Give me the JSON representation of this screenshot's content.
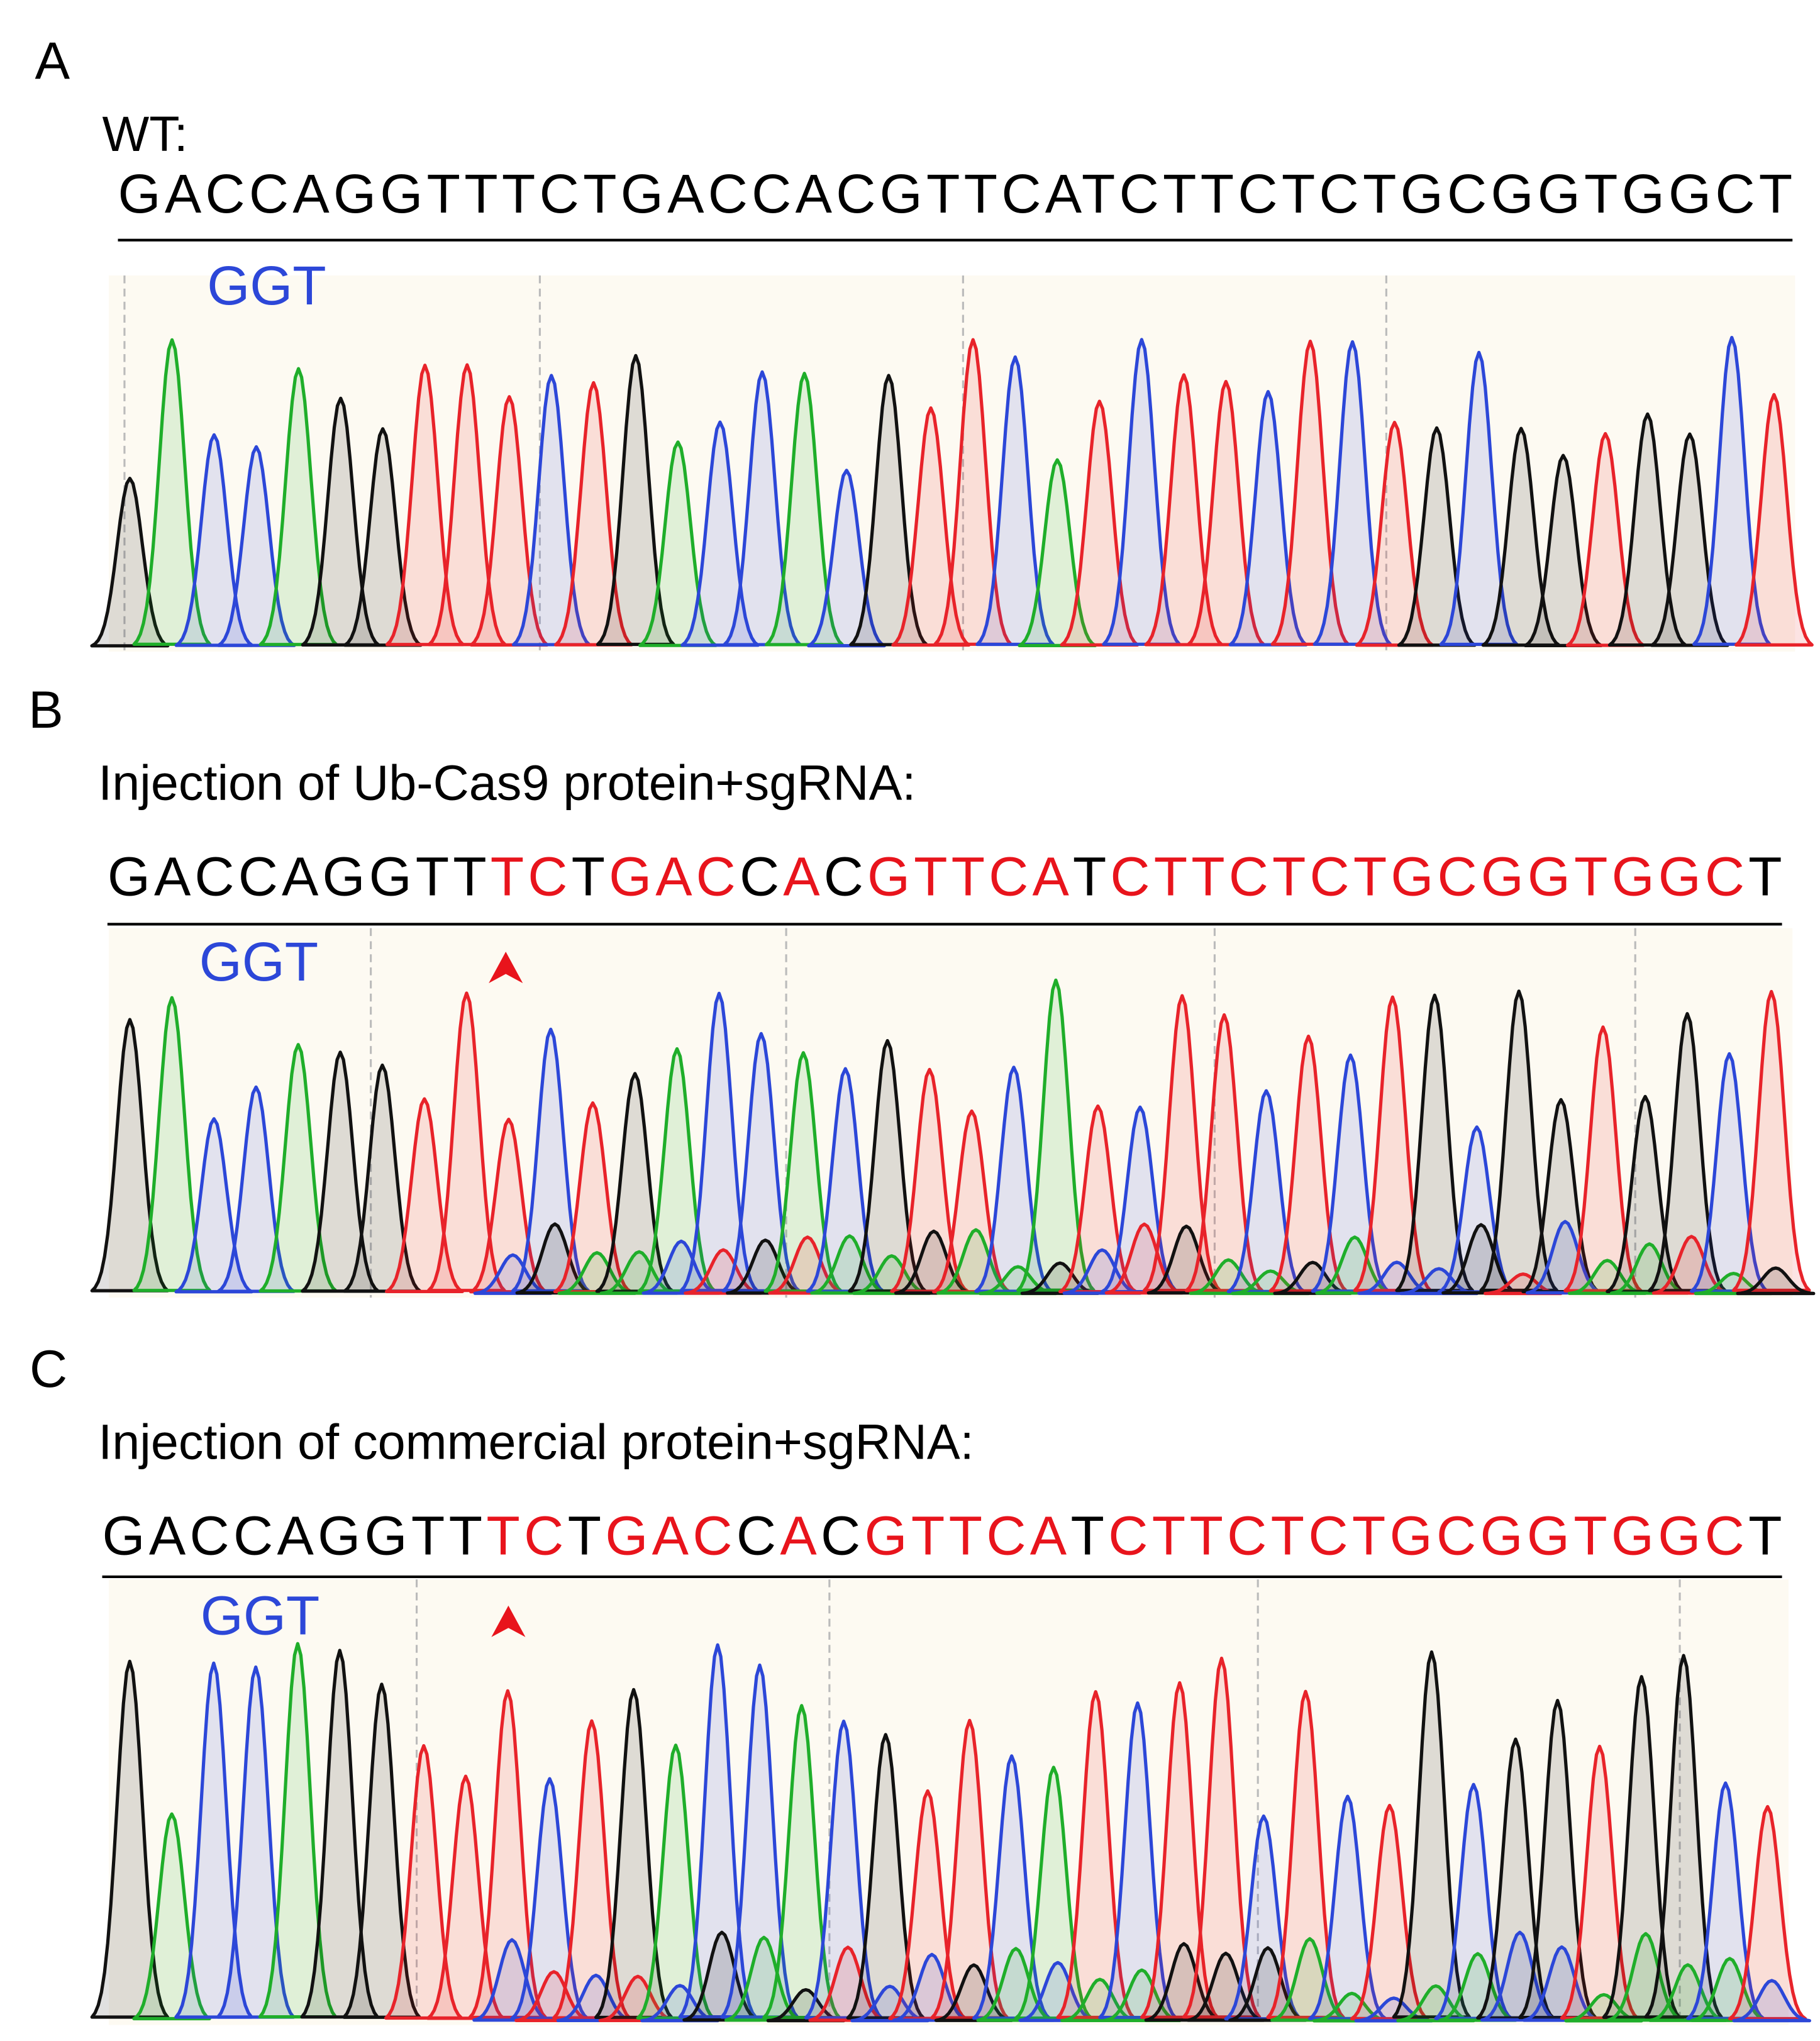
{
  "panels": [
    {
      "label": "A",
      "title": "WT:",
      "pam": "GGT",
      "sequence": [
        {
          "text": "GACCAGGTTTCTGACCACGTTCATCTTCTCTGCGGTGGCT",
          "color": "#000000"
        }
      ]
    },
    {
      "label": "B",
      "title": "Injection of Ub-Cas9 protein+sgRNA:",
      "pam": "GGT",
      "sequence": [
        {
          "text": "GACCAGGTT",
          "color": "#000000"
        },
        {
          "text": "TC",
          "color": "#e8141c"
        },
        {
          "text": "T",
          "color": "#000000"
        },
        {
          "text": "GAC",
          "color": "#e8141c"
        },
        {
          "text": "C",
          "color": "#000000"
        },
        {
          "text": "A",
          "color": "#e8141c"
        },
        {
          "text": "C",
          "color": "#000000"
        },
        {
          "text": "GTTCA",
          "color": "#e8141c"
        },
        {
          "text": "T",
          "color": "#000000"
        },
        {
          "text": "CTTCTCTGCGGTGGC",
          "color": "#e8141c"
        },
        {
          "text": "T",
          "color": "#000000"
        }
      ]
    },
    {
      "label": "C",
      "title": "Injection of commercial protein+sgRNA:",
      "pam": "GGT",
      "sequence": [
        {
          "text": "GACCAGGTT",
          "color": "#000000"
        },
        {
          "text": "TC",
          "color": "#e8141c"
        },
        {
          "text": "T",
          "color": "#000000"
        },
        {
          "text": "GAC",
          "color": "#e8141c"
        },
        {
          "text": "C",
          "color": "#000000"
        },
        {
          "text": "A",
          "color": "#e8141c"
        },
        {
          "text": "C",
          "color": "#000000"
        },
        {
          "text": "GTTCA",
          "color": "#e8141c"
        },
        {
          "text": "T",
          "color": "#000000"
        },
        {
          "text": "CTTCTCTGCGGTGGC",
          "color": "#e8141c"
        },
        {
          "text": "T",
          "color": "#000000"
        }
      ]
    }
  ]
}
